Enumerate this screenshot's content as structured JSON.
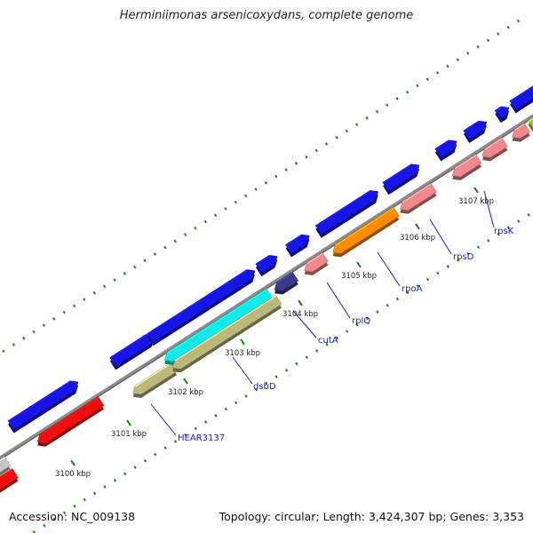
{
  "title": "Herminiimonas arsenicoxydans, complete genome",
  "footer": {
    "accession": "Accession: NC_009138",
    "summary": "Topology: circular; Length: 3,424,307 bp; Genes: 3,353"
  },
  "ticks": [
    "3100 kbp",
    "3101 kbp",
    "3102 kbp",
    "3103 kbp",
    "3104 kbp",
    "3105 kbp",
    "3106 kbp",
    "3107 kbp"
  ],
  "gene_labels": [
    "HEAR3137",
    "dsbD",
    "cutA",
    "rplQ",
    "rpoA",
    "rpsD",
    "rpsK"
  ],
  "colors": {
    "backbone": "#8c8c8c",
    "tick": "#1f7a1f",
    "label": "#1a1acc",
    "blue": "#1515e6",
    "red": "#ee0e0e",
    "grey": "#c8c8c8",
    "khaki": "#bdb77a",
    "cyan": "#10eaea",
    "navy": "#3a3a8c",
    "salmon": "#f0888c",
    "orange": "#ff8c00",
    "lime": "#9acd32"
  }
}
